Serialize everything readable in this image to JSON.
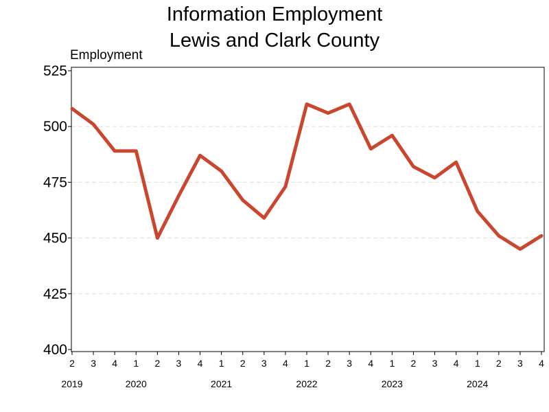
{
  "chart_data": {
    "type": "line",
    "title": [
      "Information Employment",
      "Lewis and Clark County"
    ],
    "ylabel": "Employment",
    "xlabel": "",
    "ylim": [
      400,
      525
    ],
    "yticks": [
      400,
      425,
      450,
      475,
      500,
      525
    ],
    "grid": true,
    "colors": {
      "line": "#c9472e",
      "grid": "#dddddd"
    },
    "x": [
      {
        "quarter": "2",
        "year": "2019"
      },
      {
        "quarter": "3",
        "year": ""
      },
      {
        "quarter": "4",
        "year": ""
      },
      {
        "quarter": "1",
        "year": "2020"
      },
      {
        "quarter": "2",
        "year": ""
      },
      {
        "quarter": "3",
        "year": ""
      },
      {
        "quarter": "4",
        "year": ""
      },
      {
        "quarter": "1",
        "year": "2021"
      },
      {
        "quarter": "2",
        "year": ""
      },
      {
        "quarter": "3",
        "year": ""
      },
      {
        "quarter": "4",
        "year": ""
      },
      {
        "quarter": "1",
        "year": "2022"
      },
      {
        "quarter": "2",
        "year": ""
      },
      {
        "quarter": "3",
        "year": ""
      },
      {
        "quarter": "4",
        "year": ""
      },
      {
        "quarter": "1",
        "year": "2023"
      },
      {
        "quarter": "2",
        "year": ""
      },
      {
        "quarter": "3",
        "year": ""
      },
      {
        "quarter": "4",
        "year": ""
      },
      {
        "quarter": "1",
        "year": "2024"
      },
      {
        "quarter": "2",
        "year": ""
      },
      {
        "quarter": "3",
        "year": ""
      },
      {
        "quarter": "4",
        "year": ""
      }
    ],
    "series": [
      {
        "values": [
          508,
          501,
          489,
          489,
          450,
          469,
          487,
          480,
          467,
          459,
          473,
          510,
          506,
          510,
          490,
          496,
          482,
          477,
          484,
          462,
          451,
          445,
          451
        ]
      }
    ]
  }
}
